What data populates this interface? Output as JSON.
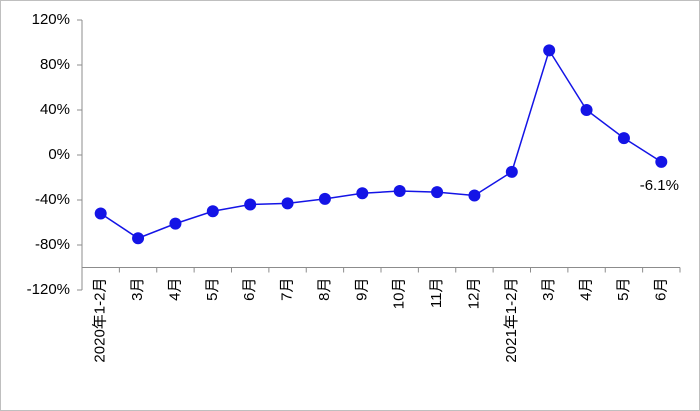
{
  "chart_data": {
    "type": "line",
    "categories": [
      "2020年1-2月",
      "3月",
      "4月",
      "5月",
      "6月",
      "7月",
      "8月",
      "9月",
      "10月",
      "11月",
      "12月",
      "2021年1-2月",
      "3月",
      "4月",
      "5月",
      "6月"
    ],
    "series": [
      {
        "color": "#1414e6",
        "values": [
          -52,
          -74,
          -61,
          -50,
          -44,
          -43,
          -39,
          -34,
          -32,
          -33,
          -36,
          -15,
          93,
          40,
          15,
          -6.1
        ],
        "value_labels": [
          null,
          null,
          null,
          null,
          null,
          null,
          null,
          null,
          null,
          null,
          null,
          null,
          null,
          null,
          null,
          "-6.1%"
        ]
      }
    ],
    "ylim": [
      -120,
      120
    ],
    "yticks": [
      {
        "value": -120,
        "label": "-120%"
      },
      {
        "value": -80,
        "label": "-80%"
      },
      {
        "value": -40,
        "label": "-40%"
      },
      {
        "value": 0,
        "label": "0%"
      },
      {
        "value": 40,
        "label": "40%"
      },
      {
        "value": 80,
        "label": "80%"
      },
      {
        "value": 120,
        "label": "120%"
      }
    ],
    "xaxis_crossing": -100,
    "grid": false
  }
}
